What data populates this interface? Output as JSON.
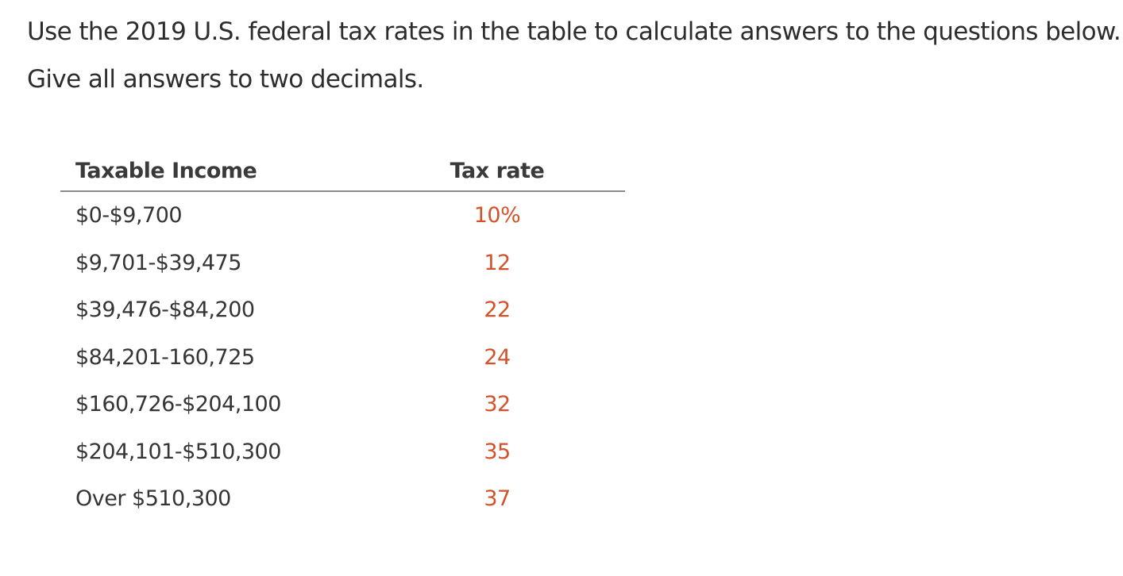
{
  "instructions": {
    "line1": "Use the 2019 U.S. federal tax rates in the table to calculate answers to the questions below.",
    "line2": "Give all answers to two decimals."
  },
  "table": {
    "headers": {
      "income": "Taxable Income",
      "rate": "Tax rate"
    },
    "rows": [
      {
        "income": "$0-$9,700",
        "rate": "10%"
      },
      {
        "income": "$9,701-$39,475",
        "rate": "12"
      },
      {
        "income": "$39,476-$84,200",
        "rate": "22"
      },
      {
        "income": "$84,201-160,725",
        "rate": "24"
      },
      {
        "income": "$160,726-$204,100",
        "rate": "32"
      },
      {
        "income": "$204,101-$510,300",
        "rate": "35"
      },
      {
        "income": "Over $510,300",
        "rate": "37"
      }
    ]
  },
  "colors": {
    "text": "#2d2d2d",
    "rate_accent": "#d4522a",
    "rule": "#8a8a8a"
  }
}
